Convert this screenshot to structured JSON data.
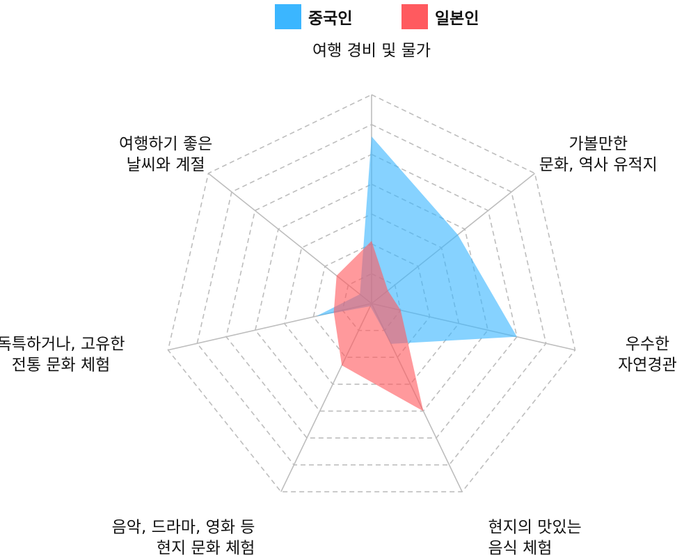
{
  "chart_data": {
    "type": "radar",
    "axes": [
      "여행 경비 및 물가",
      "가볼만한 문화, 역사 유적지",
      "우수한 자연경관",
      "현지의 맛있는 음식 체험",
      "음악, 드라마, 영화 등 현지 문화 체험",
      "독특하거나, 고유한 전통 문화 체험",
      "여행하기 좋은 날씨와 계절"
    ],
    "axis_label_lines": [
      [
        "여행 경비 및 물가"
      ],
      [
        "가볼만한",
        "문화, 역사 유적지"
      ],
      [
        "우수한",
        "자연경관"
      ],
      [
        "현지의 맛있는",
        "음식 체험"
      ],
      [
        "음악, 드라마, 영화 등",
        "현지 문화 체험"
      ],
      [
        "독특하거나, 고유한",
        "전통 문화 체험"
      ],
      [
        "여행하기 좋은",
        "날씨와 계절"
      ]
    ],
    "rlim": [
      0,
      7
    ],
    "grid_levels": 7,
    "series": [
      {
        "name": "중국인",
        "color": "#3bb6ff",
        "values": [
          5.6,
          3.7,
          5.0,
          1.5,
          0.1,
          1.9,
          0.5
        ]
      },
      {
        "name": "일본인",
        "color": "#ff5a5f",
        "values": [
          2.1,
          0.7,
          1.0,
          4.0,
          2.3,
          1.3,
          1.5
        ]
      }
    ],
    "legend": "top-center",
    "grid": true
  }
}
